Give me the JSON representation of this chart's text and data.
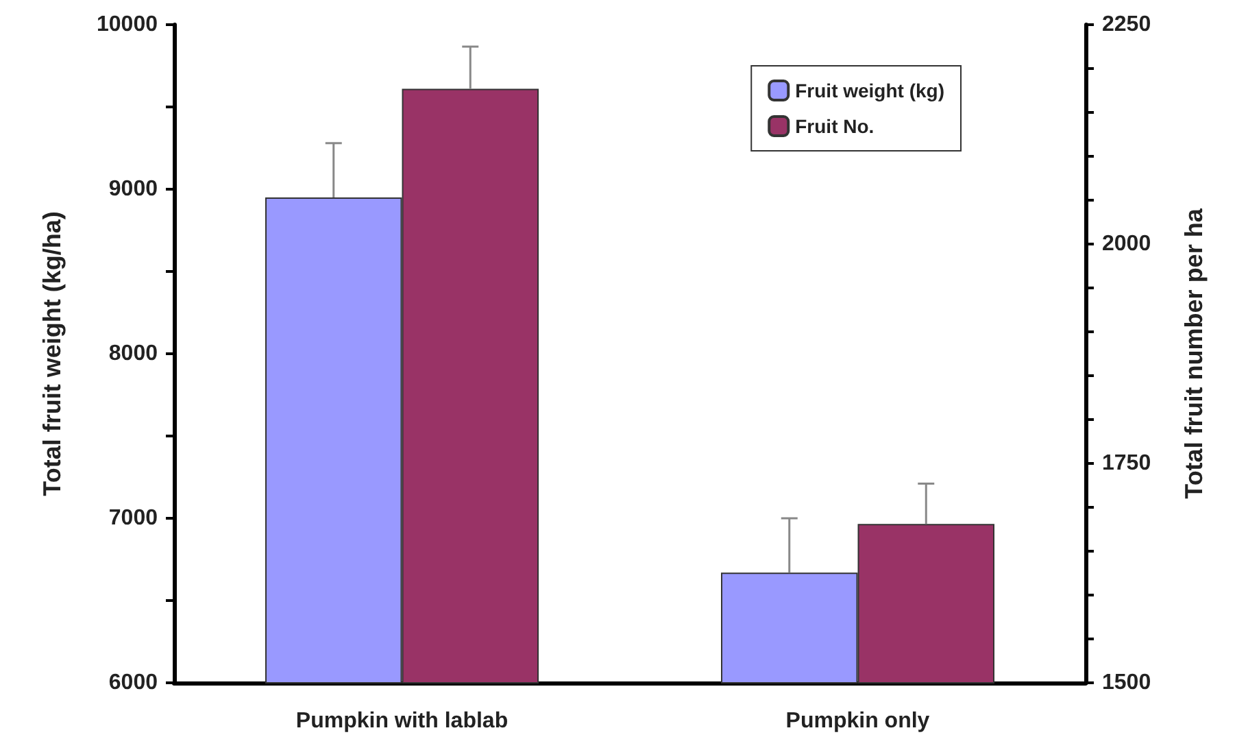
{
  "chart_data": {
    "type": "bar",
    "categories": [
      "Pumpkin with lablab",
      "Pumpkin only"
    ],
    "series": [
      {
        "name": "Fruit weight (kg)",
        "color": "#9999ff",
        "values": [
          8950,
          6670
        ],
        "errors": [
          [
            8950,
            9280
          ],
          [
            6670,
            7000
          ]
        ]
      },
      {
        "name": "Fruit No.",
        "color": "#993366",
        "values": [
          2177,
          1681
        ],
        "errors": [
          [
            2177,
            2225
          ],
          [
            1681,
            1727
          ]
        ],
        "axis": "y2"
      }
    ],
    "ylabel": "Total fruit weight (kg/ha)",
    "y2label": "Total fruit number per ha",
    "ylim": [
      6000,
      10000
    ],
    "yticks": [
      6000,
      {
        "value": 6500,
        "label": null
      },
      7000,
      {
        "value": 7500,
        "label": null
      },
      8000,
      {
        "value": 8500,
        "label": null
      },
      9000,
      {
        "value": 9500,
        "label": null
      },
      10000
    ],
    "y2lim": [
      1500,
      2250
    ],
    "y2ticks": [
      1500,
      {
        "value": 1550,
        "label": null
      },
      {
        "value": 1600,
        "label": null
      },
      {
        "value": 1650,
        "label": null
      },
      {
        "value": 1700,
        "label": null
      },
      1750,
      {
        "value": 1800,
        "label": null
      },
      {
        "value": 1850,
        "label": null
      },
      {
        "value": 1900,
        "label": null
      },
      {
        "value": 1950,
        "label": null
      },
      2000,
      {
        "value": 2050,
        "label": null
      },
      {
        "value": 2100,
        "label": null
      },
      {
        "value": 2150,
        "label": null
      },
      {
        "value": 2200,
        "label": null
      },
      2250
    ],
    "legend": "top right",
    "grid": false
  }
}
